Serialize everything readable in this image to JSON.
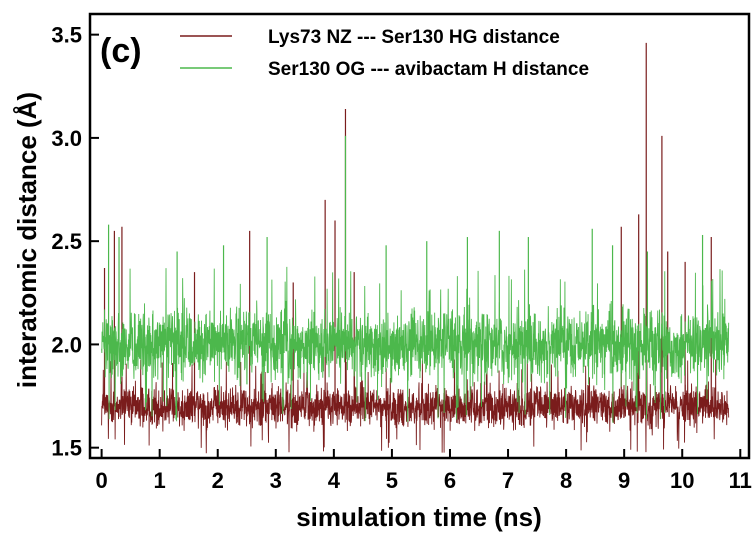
{
  "chart_data": {
    "type": "line",
    "panel_label": "(c)",
    "title": "",
    "xlabel": "simulation time (ns)",
    "ylabel": "interatomic distance (Å)",
    "xlim": [
      -0.2,
      11.15
    ],
    "ylim": [
      1.45,
      3.6
    ],
    "x_ticks": [
      0,
      1,
      2,
      3,
      4,
      5,
      6,
      7,
      8,
      9,
      10,
      11
    ],
    "y_ticks": [
      1.5,
      2.0,
      2.5,
      3.0,
      3.5
    ],
    "x_tick_labels": [
      "0",
      "1",
      "2",
      "3",
      "4",
      "5",
      "6",
      "7",
      "8",
      "9",
      "10",
      "11"
    ],
    "y_tick_labels": [
      "1.5",
      "2.0",
      "2.5",
      "3.0",
      "3.5"
    ],
    "x_range": [
      0,
      10.8
    ],
    "grid": false,
    "legend_position": "top-left",
    "series": [
      {
        "name": "Lys73 NZ --- Ser130 HG distance",
        "color": "#7a1c1c",
        "mean": 1.7,
        "typical_range": [
          1.58,
          1.82
        ],
        "spikes": [
          {
            "x": 0.05,
            "y": 2.37
          },
          {
            "x": 0.22,
            "y": 2.55
          },
          {
            "x": 0.35,
            "y": 2.57
          },
          {
            "x": 1.6,
            "y": 2.35
          },
          {
            "x": 2.55,
            "y": 2.55
          },
          {
            "x": 3.3,
            "y": 2.3
          },
          {
            "x": 3.85,
            "y": 2.7
          },
          {
            "x": 4.02,
            "y": 2.6
          },
          {
            "x": 4.2,
            "y": 3.14
          },
          {
            "x": 4.35,
            "y": 2.35
          },
          {
            "x": 8.95,
            "y": 2.57
          },
          {
            "x": 9.25,
            "y": 2.63
          },
          {
            "x": 9.38,
            "y": 3.46
          },
          {
            "x": 9.65,
            "y": 3.01
          },
          {
            "x": 9.75,
            "y": 2.45
          },
          {
            "x": 10.05,
            "y": 2.4
          },
          {
            "x": 10.5,
            "y": 2.52
          }
        ]
      },
      {
        "name": "Ser130 OG --- avibactam H distance",
        "color": "#4cb84c",
        "mean": 2.0,
        "typical_range": [
          1.8,
          2.2
        ],
        "spikes": [
          {
            "x": 0.12,
            "y": 2.58
          },
          {
            "x": 0.3,
            "y": 2.52
          },
          {
            "x": 1.3,
            "y": 2.45
          },
          {
            "x": 2.1,
            "y": 2.48
          },
          {
            "x": 2.85,
            "y": 2.52
          },
          {
            "x": 4.2,
            "y": 3.01
          },
          {
            "x": 4.9,
            "y": 2.48
          },
          {
            "x": 5.6,
            "y": 2.5
          },
          {
            "x": 6.3,
            "y": 2.52
          },
          {
            "x": 6.85,
            "y": 2.55
          },
          {
            "x": 7.35,
            "y": 2.52
          },
          {
            "x": 8.45,
            "y": 2.56
          },
          {
            "x": 8.8,
            "y": 2.48
          },
          {
            "x": 9.4,
            "y": 2.45
          },
          {
            "x": 10.35,
            "y": 2.53
          }
        ]
      }
    ]
  }
}
